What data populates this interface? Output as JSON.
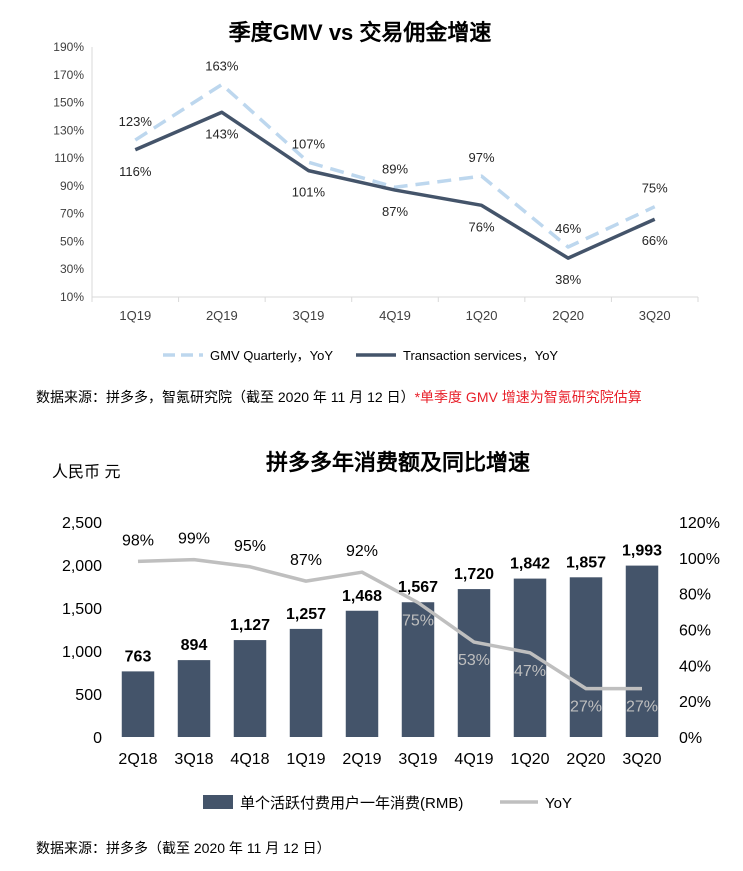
{
  "chart_data": [
    {
      "type": "line",
      "title": "季度GMV vs 交易佣金增速",
      "categories": [
        "1Q19",
        "2Q19",
        "3Q19",
        "4Q19",
        "1Q20",
        "2Q20",
        "3Q20"
      ],
      "y_axis": {
        "min": 10,
        "max": 190,
        "step": 20,
        "suffix": "%",
        "tick_labels": [
          "10%",
          "30%",
          "50%",
          "70%",
          "90%",
          "110%",
          "130%",
          "150%",
          "170%",
          "190%"
        ]
      },
      "grid": false,
      "legend_position": "bottom",
      "series": [
        {
          "name": "GMV Quarterly，YoY",
          "values": [
            123,
            163,
            107,
            89,
            97,
            46,
            75
          ],
          "color": "#bdd7ee",
          "style": "dashed",
          "labels": [
            "123%",
            "163%",
            "107%",
            "89%",
            "97%",
            "46%",
            "75%"
          ]
        },
        {
          "name": "Transaction services，YoY",
          "values": [
            116,
            143,
            101,
            87,
            76,
            38,
            66
          ],
          "color": "#44546a",
          "style": "solid",
          "labels": [
            "116%",
            "143%",
            "101%",
            "87%",
            "76%",
            "38%",
            "66%"
          ]
        }
      ]
    },
    {
      "type": "bar",
      "title": "拼多多年消费额及同比增速",
      "unit_label": "人民币 元",
      "categories": [
        "2Q18",
        "3Q18",
        "4Q18",
        "1Q19",
        "2Q19",
        "3Q19",
        "4Q19",
        "1Q20",
        "2Q20",
        "3Q20"
      ],
      "left_axis": {
        "min": 0,
        "max": 2500,
        "step": 500,
        "tick_labels": [
          "0",
          "500",
          "1,000",
          "1,500",
          "2,000",
          "2,500"
        ]
      },
      "right_axis": {
        "min": 0,
        "max": 120,
        "step": 20,
        "suffix": "%",
        "tick_labels": [
          "0%",
          "20%",
          "40%",
          "60%",
          "80%",
          "100%",
          "120%"
        ]
      },
      "grid": false,
      "legend_position": "bottom",
      "series": [
        {
          "name": "单个活跃付费用户一年消费(RMB)",
          "type": "bar",
          "axis": "left",
          "color": "#44546a",
          "values": [
            763,
            894,
            1127,
            1257,
            1468,
            1567,
            1720,
            1842,
            1857,
            1993
          ],
          "labels": [
            "763",
            "894",
            "1,127",
            "1,257",
            "1,468",
            "1,567",
            "1,720",
            "1,842",
            "1,857",
            "1,993"
          ]
        },
        {
          "name": "YoY",
          "type": "line",
          "axis": "right",
          "color": "#bfbfbf",
          "values": [
            98,
            99,
            95,
            87,
            92,
            75,
            53,
            47,
            27,
            27
          ],
          "labels": [
            "98%",
            "99%",
            "95%",
            "87%",
            "92%",
            "75%",
            "53%",
            "47%",
            "27%",
            "27%"
          ]
        }
      ]
    }
  ],
  "sources": {
    "source1_main": "数据来源：拼多多，智氪研究院（截至 2020 年 11 月 12 日）",
    "source1_note": "*单季度 GMV 增速为智氪研究院估算",
    "source2": "数据来源：拼多多（截至 2020 年 11 月 12 日）"
  }
}
